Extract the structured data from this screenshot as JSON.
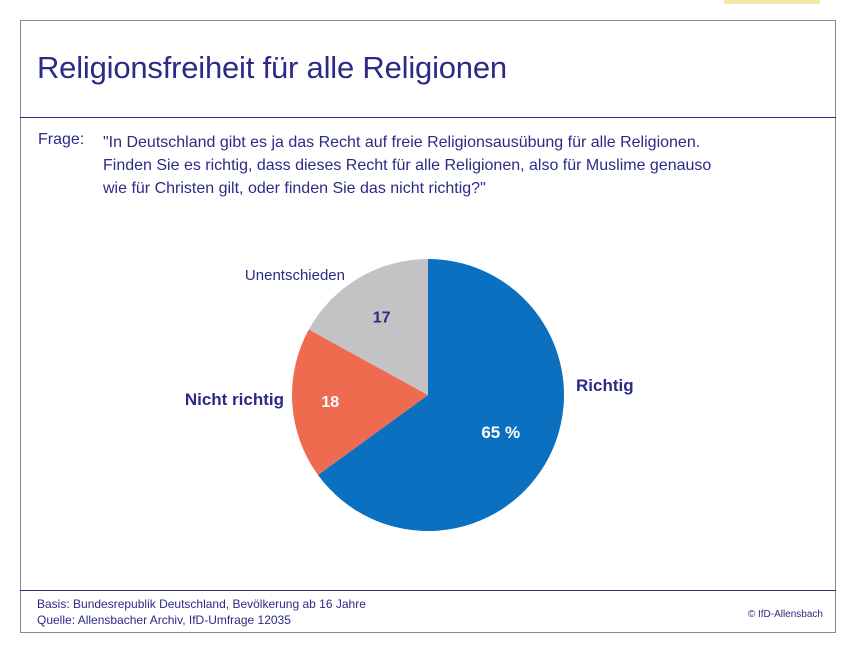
{
  "title": "Religionsfreiheit für alle Religionen",
  "question": {
    "label": "Frage:",
    "lines": [
      "\"In Deutschland gibt es ja das Recht auf freie Religionsausübung für alle Religionen.",
      "Finden Sie es richtig, dass dieses Recht für alle Religionen, also für Muslime genauso",
      "wie für Christen gilt, oder finden Sie das nicht richtig?\""
    ]
  },
  "chart_data": {
    "type": "pie",
    "slices": [
      {
        "label": "Richtig",
        "value": 65,
        "value_label": "65 %",
        "color": "#0a70bf"
      },
      {
        "label": "Nicht richtig",
        "value": 18,
        "value_label": "18",
        "color": "#ef6b4f"
      },
      {
        "label": "Unentschieden",
        "value": 17,
        "value_label": "17",
        "color": "#c3c3c5"
      }
    ],
    "start": "12 o'clock",
    "direction": "clockwise"
  },
  "footer": {
    "basis": "Basis: Bundesrepublik Deutschland, Bevölkerung ab 16 Jahre",
    "source": "Quelle: Allensbacher Archiv, IfD-Umfrage 12035",
    "copyright": "© IfD-Allensbach"
  },
  "colors": {
    "text": "#2b2b86",
    "frame": "#8a8a8a"
  }
}
